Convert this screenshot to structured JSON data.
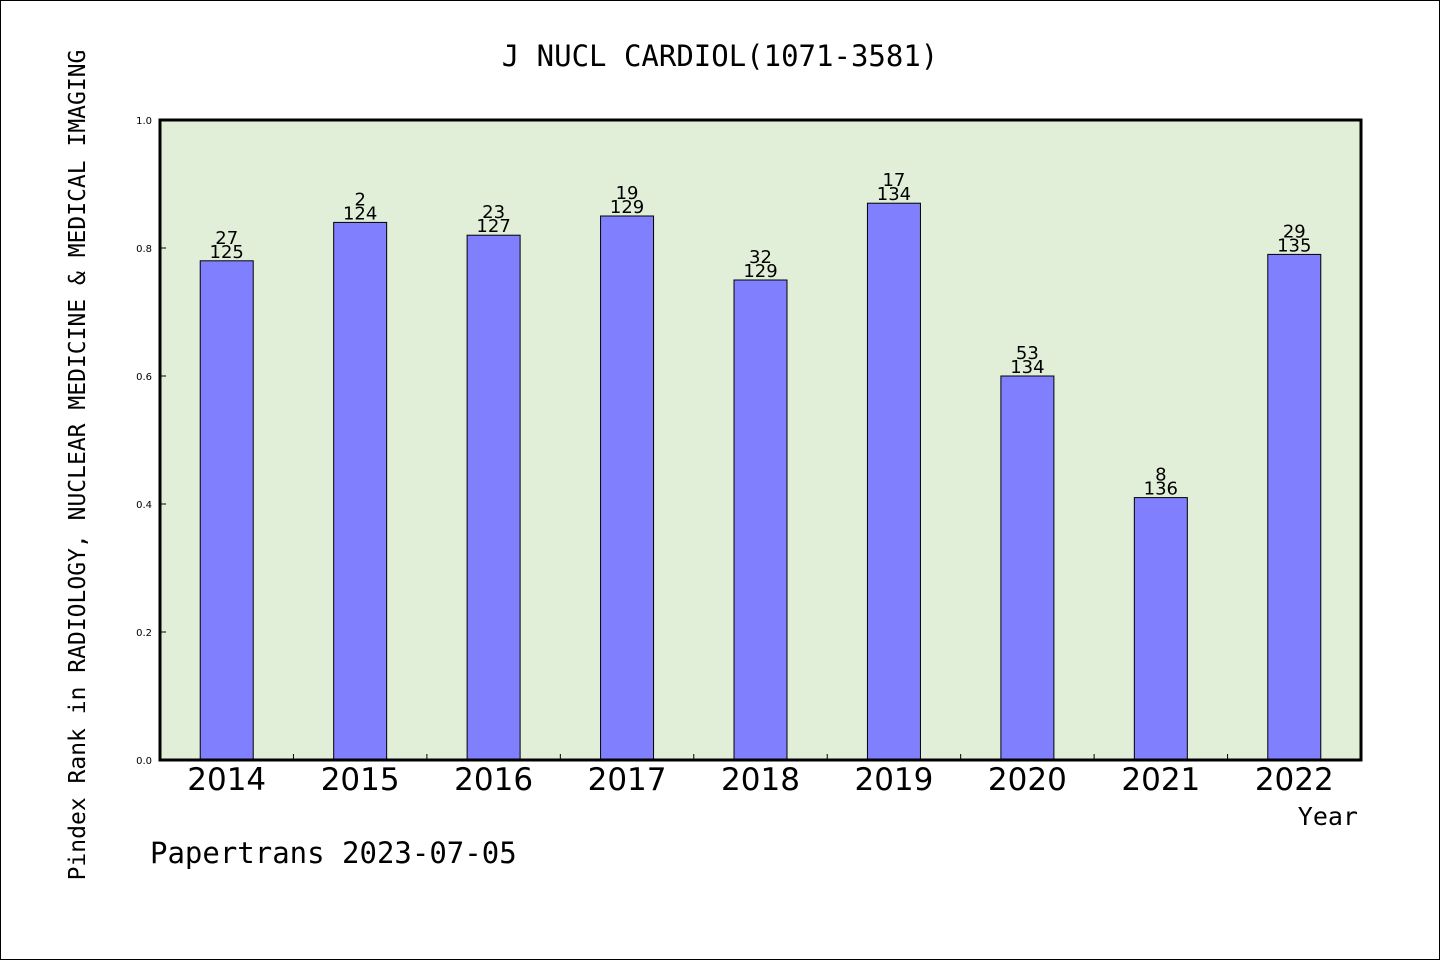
{
  "chart_data": {
    "type": "bar",
    "title": "J NUCL CARDIOL(1071-3581)",
    "ylabel": "Pindex Rank in RADIOLOGY, NUCLEAR MEDICINE & MEDICAL IMAGING",
    "xlabel": "Year",
    "footer": "Papertrans 2023-07-05",
    "ylim": [
      0,
      1.0
    ],
    "yticks": [
      "0.0",
      "0.2",
      "0.4",
      "0.6",
      "0.8",
      "1.0"
    ],
    "categories": [
      "2014",
      "2015",
      "2016",
      "2017",
      "2018",
      "2019",
      "2020",
      "2021",
      "2022"
    ],
    "values": [
      0.78,
      0.84,
      0.82,
      0.85,
      0.75,
      0.87,
      0.6,
      0.41,
      0.79
    ],
    "ranks": [
      "27",
      "2",
      "23",
      "19",
      "32",
      "17",
      "53",
      "8",
      "29"
    ],
    "totals": [
      "125",
      "124",
      "127",
      "129",
      "129",
      "134",
      "134",
      "136",
      "135"
    ],
    "colors": {
      "plot_bg": "#e2efd8",
      "bar_fill": "#8080ff",
      "bar_stroke": "#000000"
    }
  }
}
